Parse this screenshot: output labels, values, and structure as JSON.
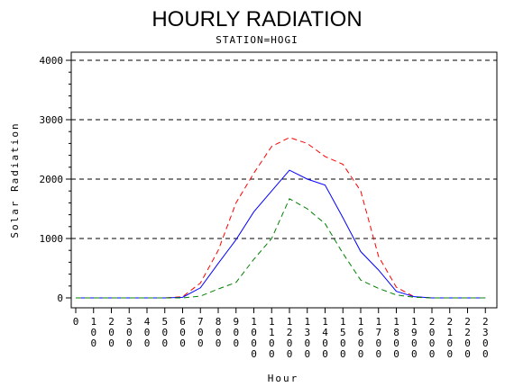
{
  "chart_data": {
    "type": "line",
    "title": "HOURLY RADIATION",
    "subtitle": "STATION=HOGI",
    "xlabel": "Hour",
    "ylabel": "Solar Radiation",
    "ylim": [
      0,
      4000
    ],
    "yticks": [
      "0",
      "1000",
      "2000",
      "3000",
      "4000"
    ],
    "grid": "horizontal-dashed",
    "x": [
      0,
      100,
      200,
      300,
      400,
      500,
      600,
      700,
      800,
      900,
      1000,
      1100,
      1200,
      1300,
      1400,
      1500,
      1600,
      1700,
      1800,
      1900,
      2000,
      2100,
      2200,
      2300
    ],
    "xtick_labels": [
      "0",
      "100",
      "200",
      "300",
      "400",
      "500",
      "600",
      "700",
      "800",
      "900",
      "1000",
      "1100",
      "1200",
      "1300",
      "1400",
      "1500",
      "1600",
      "1700",
      "1800",
      "1900",
      "2000",
      "2100",
      "2200",
      "2300"
    ],
    "series": [
      {
        "color": "#ff0000",
        "style": "dashed",
        "values": [
          0,
          0,
          0,
          0,
          0,
          0,
          20,
          250,
          800,
          1600,
          2100,
          2550,
          2700,
          2600,
          2380,
          2250,
          1800,
          700,
          180,
          20,
          0,
          0,
          0,
          0
        ]
      },
      {
        "color": "#0000ff",
        "style": "solid",
        "values": [
          0,
          0,
          0,
          0,
          0,
          0,
          10,
          170,
          580,
          980,
          1450,
          1800,
          2150,
          2000,
          1900,
          1350,
          780,
          470,
          110,
          20,
          0,
          0,
          0,
          0
        ]
      },
      {
        "color": "#008000",
        "style": "dashed",
        "values": [
          0,
          0,
          0,
          0,
          0,
          0,
          0,
          30,
          150,
          260,
          650,
          1000,
          1670,
          1500,
          1250,
          750,
          300,
          160,
          50,
          10,
          0,
          0,
          0,
          0
        ]
      }
    ]
  }
}
